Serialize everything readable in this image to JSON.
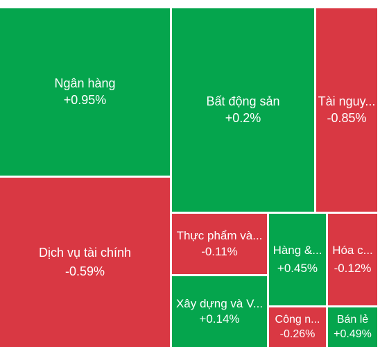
{
  "colors": {
    "up": "#05a54d",
    "down": "#d93843",
    "separator": "#ffffff"
  },
  "tiles": [
    {
      "name": "Ngân hàng",
      "change": "+0.95%",
      "direction": "up"
    },
    {
      "name": "Bất động sản",
      "change": "+0.2%",
      "direction": "up"
    },
    {
      "name": "Tài nguy...",
      "change": "-0.85%",
      "direction": "down"
    },
    {
      "name": "Dịch vụ tài chính",
      "change": "-0.59%",
      "direction": "down"
    },
    {
      "name": "Thực phẩm và...",
      "change": "-0.11%",
      "direction": "down"
    },
    {
      "name": "Hàng &...",
      "change": "+0.45%",
      "direction": "up"
    },
    {
      "name": "Hóa c...",
      "change": "-0.12%",
      "direction": "down"
    },
    {
      "name": "Xây dựng và V...",
      "change": "+0.14%",
      "direction": "up"
    },
    {
      "name": "Công n...",
      "change": "-0.26%",
      "direction": "down"
    },
    {
      "name": "Bán lẻ",
      "change": "+0.49%",
      "direction": "up"
    }
  ]
}
